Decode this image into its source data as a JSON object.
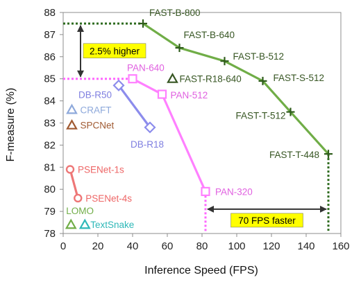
{
  "chart_data": {
    "type": "scatter",
    "xlabel": "Inference Speed (FPS)",
    "ylabel": "F-measure (%)",
    "xlim": [
      0,
      160
    ],
    "ylim": [
      78,
      88
    ],
    "xticks": [
      "0",
      "20",
      "40",
      "60",
      "80",
      "100",
      "120",
      "140",
      "160"
    ],
    "yticks": [
      "78",
      "79",
      "80",
      "81",
      "82",
      "83",
      "84",
      "85",
      "86",
      "87",
      "88"
    ],
    "grid": false,
    "series": [
      {
        "name": "FAST",
        "color": "#70ad47",
        "marker": "plus",
        "line": true,
        "points": [
          {
            "label": "FAST-B-800",
            "x": 46,
            "y": 87.5
          },
          {
            "label": "FAST-B-640",
            "x": 67,
            "y": 86.4
          },
          {
            "label": "FAST-B-512",
            "x": 93,
            "y": 85.8
          },
          {
            "label": "FAST-S-512",
            "x": 115,
            "y": 84.9
          },
          {
            "label": "FAST-T-512",
            "x": 131,
            "y": 83.5
          },
          {
            "label": "FAST-T-448",
            "x": 152.8,
            "y": 81.6
          }
        ]
      },
      {
        "name": "PAN",
        "color": "#ff80ff",
        "marker": "square",
        "line": true,
        "points": [
          {
            "label": "PAN-640",
            "x": 40,
            "y": 85.0
          },
          {
            "label": "PAN-512",
            "x": 57,
            "y": 84.3
          },
          {
            "label": "PAN-320",
            "x": 82,
            "y": 79.9
          }
        ]
      },
      {
        "name": "DB",
        "color": "#8c8cec",
        "marker": "diamond",
        "line": true,
        "points": [
          {
            "label": "DB-R50",
            "x": 32,
            "y": 84.7
          },
          {
            "label": "DB-R18",
            "x": 50,
            "y": 82.8
          }
        ]
      },
      {
        "name": "PSENet",
        "color": "#ee7777",
        "marker": "circle",
        "line": true,
        "points": [
          {
            "label": "PSENet-1s",
            "x": 4,
            "y": 80.9
          },
          {
            "label": "PSENet-4s",
            "x": 8.5,
            "y": 79.6
          }
        ]
      },
      {
        "name": "R18-640",
        "color": "#375623",
        "marker": "triangle",
        "line": false,
        "points": [
          {
            "label": "FAST-R18-640",
            "x": 63,
            "y": 85.0
          }
        ]
      },
      {
        "name": "CRAFT",
        "color": "#8ea9db",
        "marker": "triangle",
        "line": false,
        "points": [
          {
            "label": "CRAFT",
            "x": 5,
            "y": 83.6
          }
        ]
      },
      {
        "name": "SPCNet",
        "color": "#a05a32",
        "marker": "triangle",
        "line": false,
        "points": [
          {
            "label": "SPCNet",
            "x": 5,
            "y": 82.9
          }
        ]
      },
      {
        "name": "LOMO",
        "color": "#70ad47",
        "marker": "triangle",
        "line": false,
        "points": [
          {
            "label": "LOMO",
            "x": 4.5,
            "y": 78.4
          }
        ]
      },
      {
        "name": "TextSnake",
        "color": "#2eb8b8",
        "marker": "triangle",
        "line": false,
        "points": [
          {
            "label": "TextSnake",
            "x": 12.5,
            "y": 78.4
          }
        ]
      }
    ],
    "annotations": [
      {
        "text": "2.5% higher",
        "from": {
          "x": 10,
          "y": 87.5
        },
        "to": {
          "x": 10,
          "y": 85.0
        }
      },
      {
        "text": "70 FPS faster",
        "from": {
          "x": 82,
          "y": 79.1
        },
        "to": {
          "x": 152.8,
          "y": 79.1
        }
      }
    ]
  }
}
